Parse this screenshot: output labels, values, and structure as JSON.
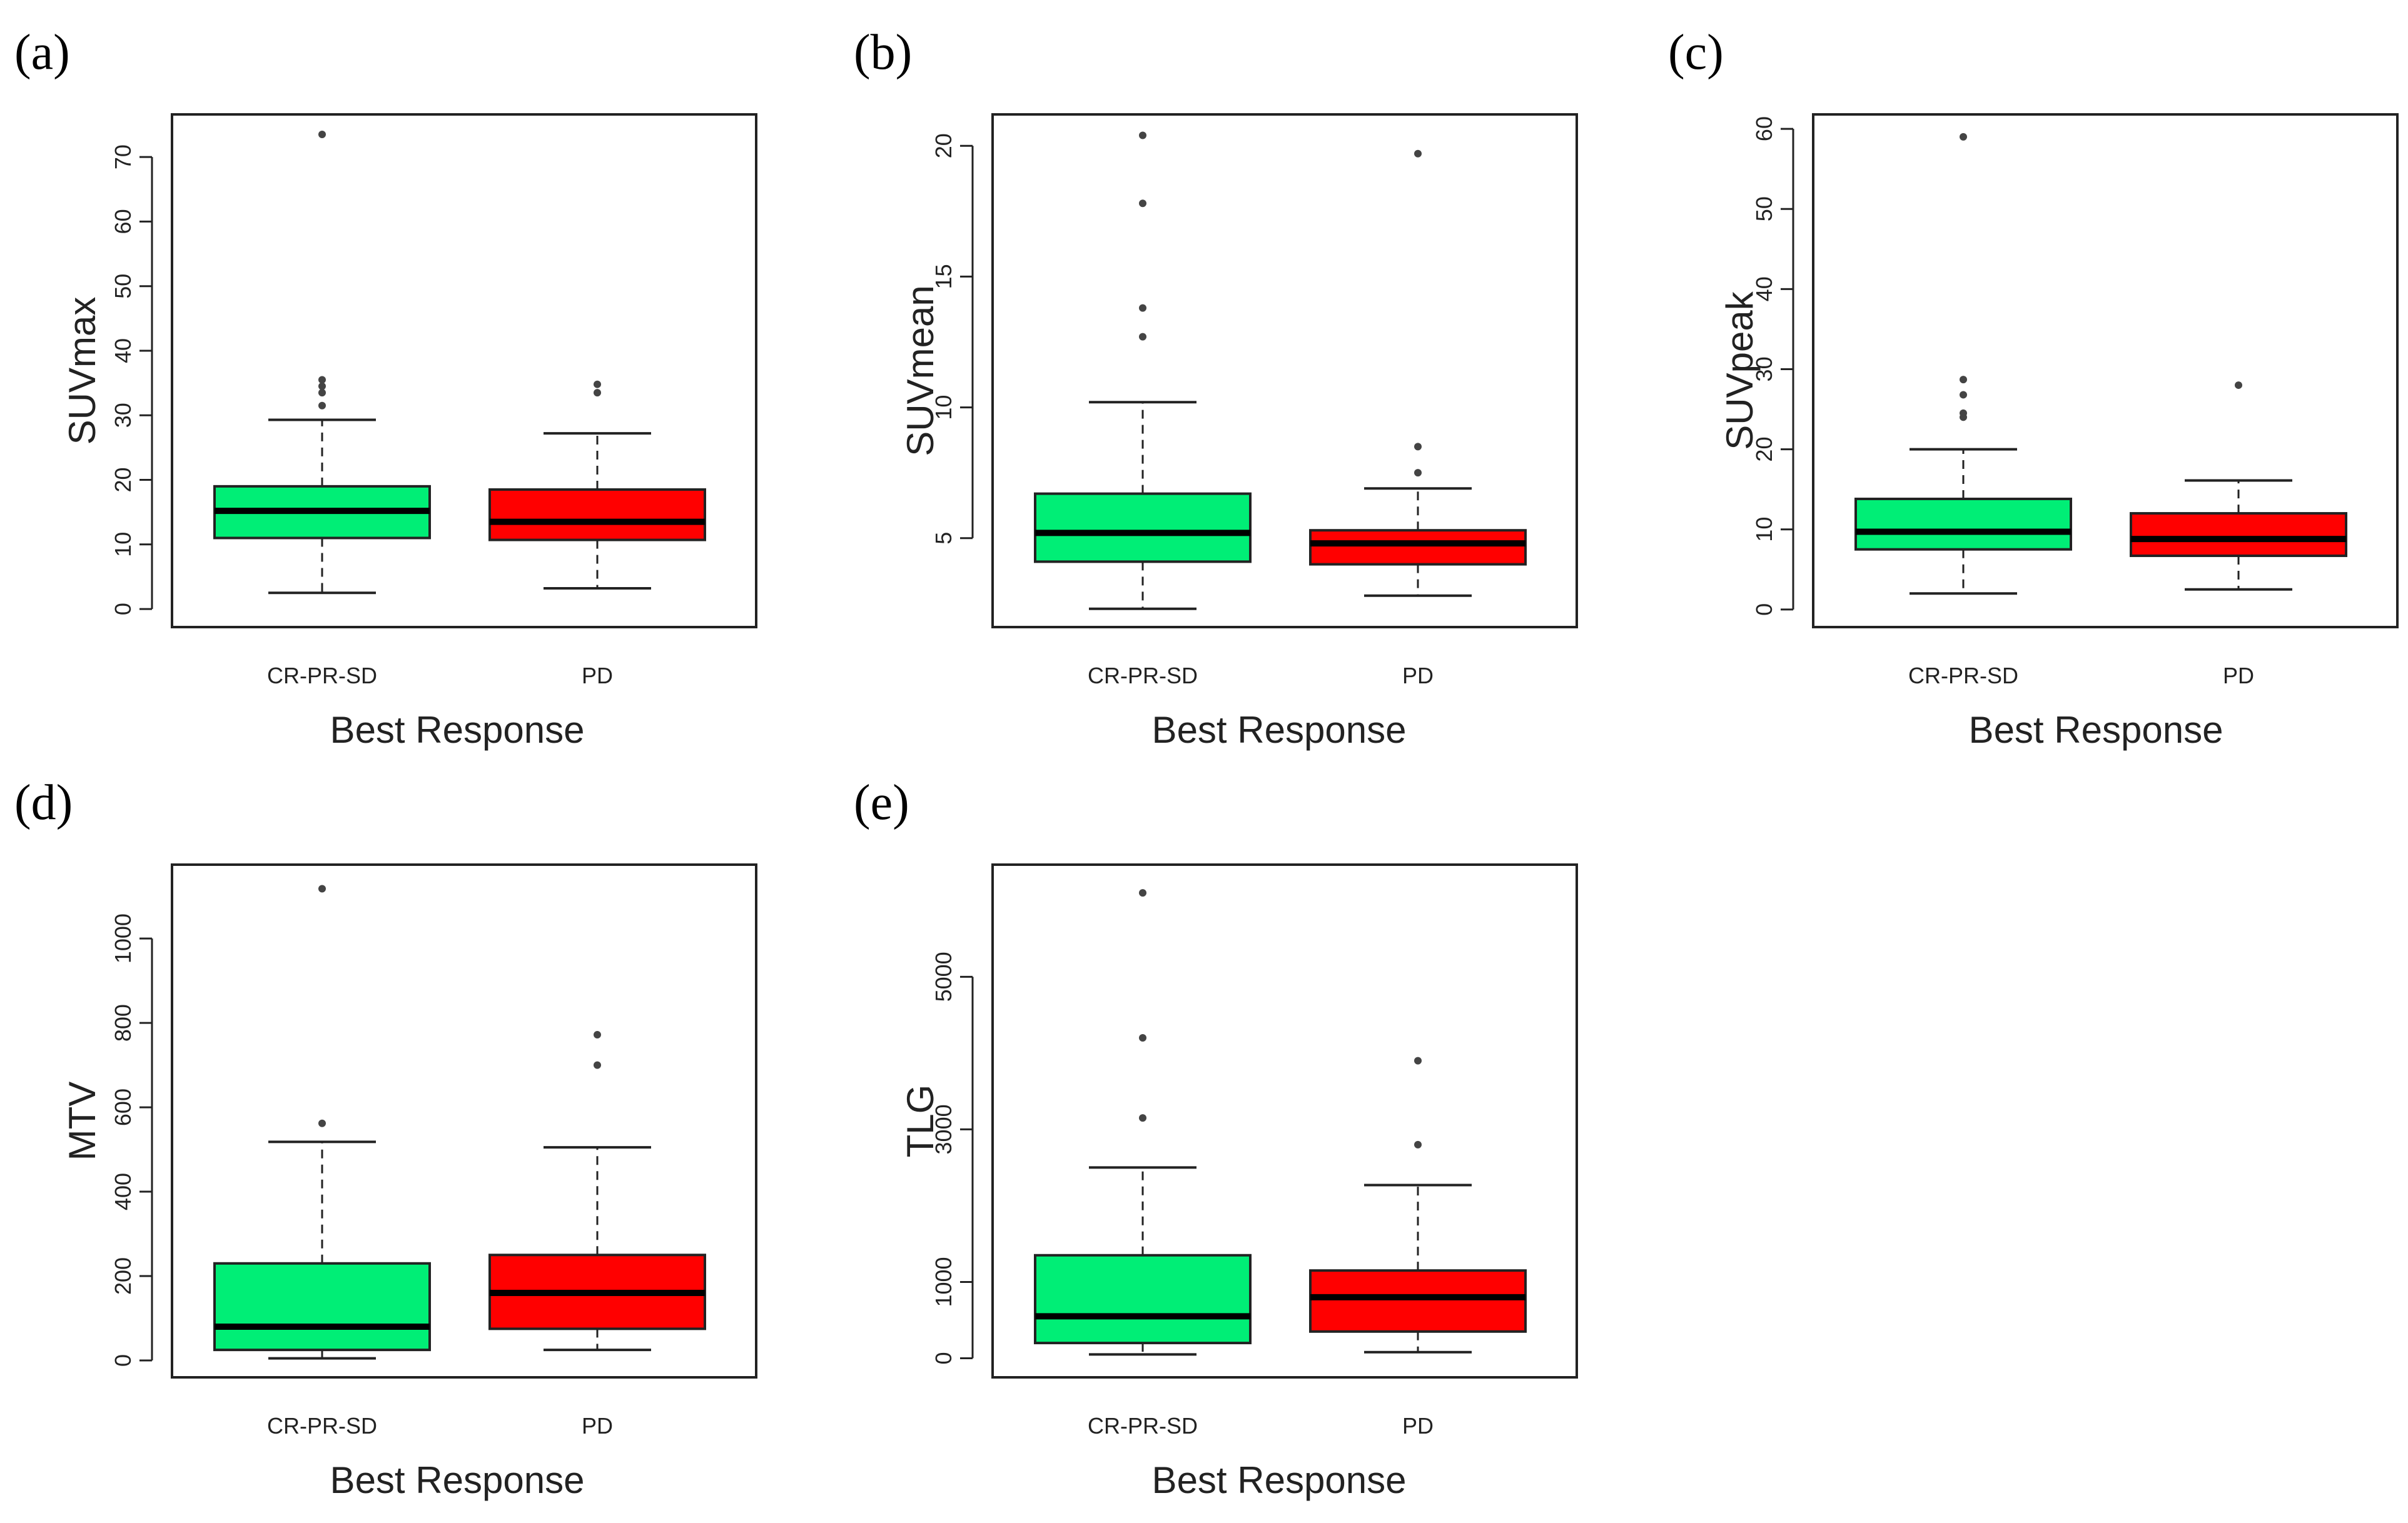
{
  "chart_data": [
    {
      "type": "boxplot",
      "panel": "(a)",
      "ylabel": "SUVmax",
      "xlabel": "Best Response",
      "yticks": [
        0,
        10,
        20,
        30,
        40,
        50,
        60,
        70
      ],
      "ytick_labels": [
        "0",
        "10",
        "20",
        "30",
        "40",
        "50",
        "60",
        "70"
      ],
      "ylim": [
        -2.8,
        76.6
      ],
      "categories": [
        "CR-PR-SD",
        "PD"
      ],
      "colors": [
        "#00EE76",
        "#FF0000"
      ],
      "boxes": [
        {
          "whisker_low": 2.5,
          "q1": 11,
          "median": 15.2,
          "q3": 19,
          "whisker_high": 29.3,
          "outliers": [
            31.5,
            33.5,
            34.5,
            35.5,
            73.5
          ]
        },
        {
          "whisker_low": 3.2,
          "q1": 10.7,
          "median": 13.5,
          "q3": 18.5,
          "whisker_high": 27.2,
          "outliers": [
            33.5,
            34.8
          ]
        }
      ]
    },
    {
      "type": "boxplot",
      "panel": "(b)",
      "ylabel": "SUVmean",
      "xlabel": "Best Response",
      "yticks": [
        5,
        10,
        15,
        20
      ],
      "ytick_labels": [
        "5",
        "10",
        "15",
        "20"
      ],
      "ylim": [
        1.6,
        21.2
      ],
      "categories": [
        "CR-PR-SD",
        "PD"
      ],
      "colors": [
        "#00EE76",
        "#FF0000"
      ],
      "boxes": [
        {
          "whisker_low": 2.3,
          "q1": 4.1,
          "median": 5.2,
          "q3": 6.7,
          "whisker_high": 10.2,
          "outliers": [
            12.7,
            13.8,
            17.8,
            20.4
          ]
        },
        {
          "whisker_low": 2.8,
          "q1": 4.0,
          "median": 4.8,
          "q3": 5.3,
          "whisker_high": 6.9,
          "outliers": [
            7.5,
            8.5,
            19.7
          ]
        }
      ]
    },
    {
      "type": "boxplot",
      "panel": "(c)",
      "ylabel": "SUVpeak",
      "xlabel": "Best Response",
      "yticks": [
        0,
        10,
        20,
        30,
        40,
        50,
        60
      ],
      "ytick_labels": [
        "0",
        "10",
        "20",
        "30",
        "40",
        "50",
        "60"
      ],
      "ylim": [
        -2.2,
        61.8
      ],
      "categories": [
        "CR-PR-SD",
        "PD"
      ],
      "colors": [
        "#00EE76",
        "#FF0000"
      ],
      "boxes": [
        {
          "whisker_low": 2.0,
          "q1": 7.5,
          "median": 9.7,
          "q3": 13.8,
          "whisker_high": 20.0,
          "outliers": [
            24.0,
            24.5,
            26.8,
            28.7,
            59.0
          ]
        },
        {
          "whisker_low": 2.5,
          "q1": 6.7,
          "median": 8.8,
          "q3": 12.0,
          "whisker_high": 16.1,
          "outliers": [
            28.0
          ]
        }
      ]
    },
    {
      "type": "boxplot",
      "panel": "(d)",
      "ylabel": "MTV",
      "xlabel": "Best Response",
      "yticks": [
        0,
        200,
        400,
        600,
        800,
        1000
      ],
      "ytick_labels": [
        "0",
        "200",
        "400",
        "600",
        "800",
        "1000"
      ],
      "ylim": [
        -40,
        1175
      ],
      "categories": [
        "CR-PR-SD",
        "PD"
      ],
      "colors": [
        "#00EE76",
        "#FF0000"
      ],
      "boxes": [
        {
          "whisker_low": 5,
          "q1": 25,
          "median": 80,
          "q3": 230,
          "whisker_high": 518,
          "outliers": [
            562,
            1118
          ]
        },
        {
          "whisker_low": 25,
          "q1": 75,
          "median": 160,
          "q3": 250,
          "whisker_high": 505,
          "outliers": [
            700,
            772
          ]
        }
      ]
    },
    {
      "type": "boxplot",
      "panel": "(e)",
      "ylabel": "TLG",
      "xlabel": "Best Response",
      "yticks": [
        0,
        1000,
        3000,
        5000
      ],
      "ytick_labels": [
        "0",
        "1000",
        "3000",
        "5000"
      ],
      "ylim": [
        -250,
        6470
      ],
      "categories": [
        "CR-PR-SD",
        "PD"
      ],
      "colors": [
        "#00EE76",
        "#FF0000"
      ],
      "boxes": [
        {
          "whisker_low": 50,
          "q1": 200,
          "median": 550,
          "q3": 1350,
          "whisker_high": 2500,
          "outliers": [
            3150,
            4200,
            6100
          ]
        },
        {
          "whisker_low": 80,
          "q1": 350,
          "median": 800,
          "q3": 1150,
          "whisker_high": 2270,
          "outliers": [
            2800,
            3900
          ]
        }
      ]
    }
  ]
}
